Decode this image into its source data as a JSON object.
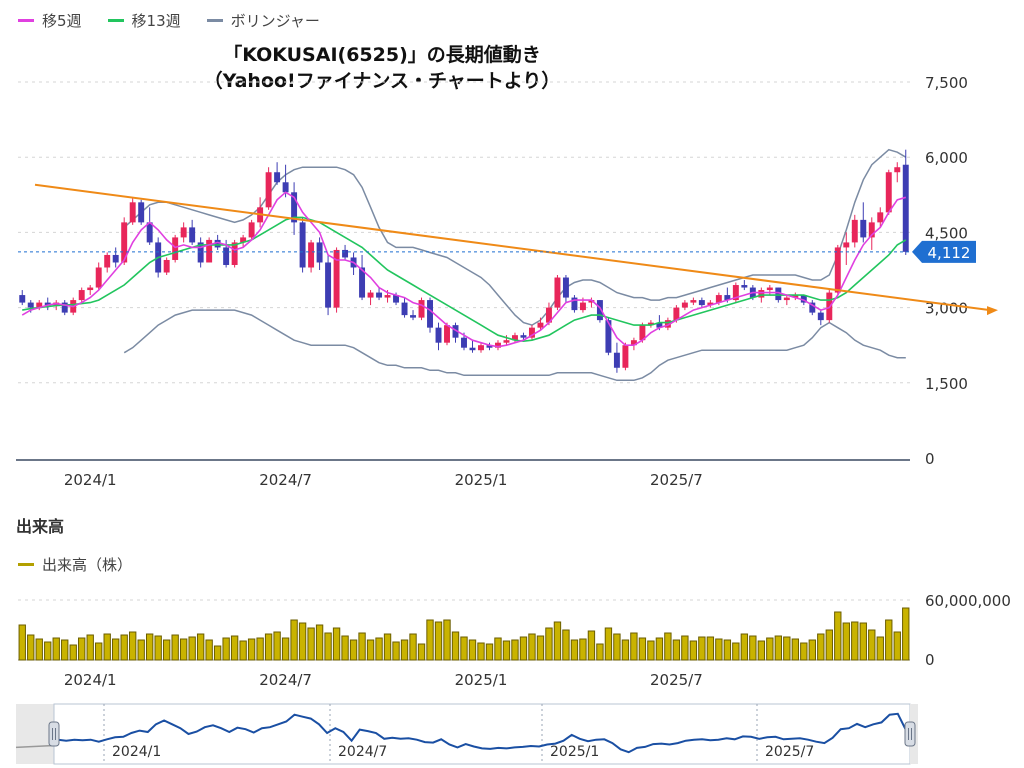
{
  "legend": [
    {
      "label": "移5週",
      "color": "#e040e0"
    },
    {
      "label": "移13週",
      "color": "#22c55e"
    },
    {
      "label": "ボリンジャー",
      "color": "#7b8ba3"
    }
  ],
  "title_line1": "「KOKUSAI(6525)」の長期値動き",
  "title_line2": "（Yahoo!ファイナンス・チャートより）",
  "chart_data": [
    {
      "type": "candlestick",
      "title": "「KOKUSAI(6525)」の長期値動き",
      "subtitle": "（Yahoo!ファイナンス・チャートより）",
      "y_ticks": [
        "7,500",
        "6,000",
        "4,500",
        "3,000",
        "1,500",
        "0"
      ],
      "y_tick_values": [
        7500,
        6000,
        4500,
        3000,
        1500,
        0
      ],
      "ylim": [
        0,
        7500
      ],
      "x_ticks": [
        "2024/1",
        "2024/7",
        "2025/1",
        "2025/7"
      ],
      "current_price": 4112,
      "current_price_label": "4,112",
      "series_names": [
        "移5週",
        "移13週",
        "ボリンジャー"
      ],
      "trendline": {
        "start_value": 5450,
        "end_value": 2950,
        "color": "#ef8a17"
      },
      "candles": [
        [
          3250,
          3350,
          3050,
          3100
        ],
        [
          3100,
          3150,
          2900,
          3000
        ],
        [
          3000,
          3150,
          2950,
          3100
        ],
        [
          3100,
          3200,
          2950,
          3050
        ],
        [
          3050,
          3150,
          2950,
          3100
        ],
        [
          3100,
          3150,
          2850,
          2900
        ],
        [
          2900,
          3200,
          2850,
          3150
        ],
        [
          3150,
          3400,
          3100,
          3350
        ],
        [
          3350,
          3450,
          3250,
          3400
        ],
        [
          3400,
          3900,
          3350,
          3800
        ],
        [
          3800,
          4100,
          3700,
          4050
        ],
        [
          4050,
          4200,
          3800,
          3900
        ],
        [
          3900,
          4800,
          3850,
          4700
        ],
        [
          4700,
          5200,
          4650,
          5100
        ],
        [
          5100,
          5150,
          4650,
          4700
        ],
        [
          4700,
          5000,
          4250,
          4300
        ],
        [
          4300,
          4400,
          3600,
          3700
        ],
        [
          3700,
          4000,
          3650,
          3950
        ],
        [
          3950,
          4450,
          3900,
          4400
        ],
        [
          4400,
          4700,
          4300,
          4600
        ],
        [
          4600,
          4750,
          4250,
          4300
        ],
        [
          4300,
          4400,
          3800,
          3900
        ],
        [
          3900,
          4400,
          3900,
          4350
        ],
        [
          4350,
          4450,
          4150,
          4200
        ],
        [
          4200,
          4350,
          3800,
          3850
        ],
        [
          3850,
          4350,
          3800,
          4300
        ],
        [
          4300,
          4450,
          4200,
          4400
        ],
        [
          4400,
          4750,
          4350,
          4700
        ],
        [
          4700,
          5200,
          4600,
          5000
        ],
        [
          5000,
          5800,
          4950,
          5700
        ],
        [
          5700,
          5900,
          5450,
          5500
        ],
        [
          5500,
          5850,
          5200,
          5300
        ],
        [
          5300,
          5500,
          4450,
          4700
        ],
        [
          4700,
          4800,
          3700,
          3800
        ],
        [
          3800,
          4350,
          3700,
          4300
        ],
        [
          4300,
          4400,
          3750,
          3900
        ],
        [
          3900,
          4050,
          2850,
          3000
        ],
        [
          3000,
          4200,
          2900,
          4150
        ],
        [
          4150,
          4250,
          3950,
          4000
        ],
        [
          4000,
          4100,
          3650,
          3800
        ],
        [
          3800,
          4050,
          3150,
          3200
        ],
        [
          3200,
          3350,
          3050,
          3300
        ],
        [
          3300,
          3400,
          3150,
          3200
        ],
        [
          3200,
          3350,
          3100,
          3250
        ],
        [
          3250,
          3300,
          3050,
          3100
        ],
        [
          3100,
          3200,
          2800,
          2850
        ],
        [
          2850,
          2950,
          2750,
          2800
        ],
        [
          2800,
          3200,
          2750,
          3150
        ],
        [
          3150,
          3200,
          2500,
          2600
        ],
        [
          2600,
          2700,
          2150,
          2300
        ],
        [
          2300,
          2700,
          2250,
          2650
        ],
        [
          2650,
          2700,
          2300,
          2400
        ],
        [
          2400,
          2500,
          2150,
          2200
        ],
        [
          2200,
          2350,
          2100,
          2150
        ],
        [
          2150,
          2300,
          2100,
          2250
        ],
        [
          2250,
          2300,
          2150,
          2200
        ],
        [
          2200,
          2350,
          2150,
          2300
        ],
        [
          2300,
          2450,
          2250,
          2350
        ],
        [
          2350,
          2500,
          2300,
          2450
        ],
        [
          2450,
          2500,
          2350,
          2400
        ],
        [
          2400,
          2650,
          2350,
          2600
        ],
        [
          2600,
          2800,
          2550,
          2700
        ],
        [
          2700,
          3100,
          2650,
          3000
        ],
        [
          3000,
          3650,
          2950,
          3600
        ],
        [
          3600,
          3650,
          3100,
          3200
        ],
        [
          3200,
          3250,
          2900,
          2950
        ],
        [
          2950,
          3200,
          2900,
          3100
        ],
        [
          3100,
          3200,
          3000,
          3150
        ],
        [
          3150,
          3150,
          2700,
          2750
        ],
        [
          2750,
          2800,
          2050,
          2100
        ],
        [
          2100,
          2300,
          1700,
          1800
        ],
        [
          1800,
          2300,
          1750,
          2250
        ],
        [
          2250,
          2400,
          2150,
          2350
        ],
        [
          2350,
          2700,
          2300,
          2650
        ],
        [
          2650,
          2750,
          2600,
          2700
        ],
        [
          2700,
          2850,
          2550,
          2600
        ],
        [
          2600,
          2800,
          2550,
          2750
        ],
        [
          2750,
          3050,
          2700,
          3000
        ],
        [
          3000,
          3150,
          2950,
          3100
        ],
        [
          3100,
          3200,
          3050,
          3150
        ],
        [
          3150,
          3200,
          3000,
          3050
        ],
        [
          3050,
          3150,
          3000,
          3100
        ],
        [
          3100,
          3300,
          3050,
          3250
        ],
        [
          3250,
          3400,
          3100,
          3150
        ],
        [
          3150,
          3500,
          3100,
          3450
        ],
        [
          3450,
          3550,
          3350,
          3400
        ],
        [
          3400,
          3450,
          3150,
          3200
        ],
        [
          3200,
          3400,
          3100,
          3350
        ],
        [
          3350,
          3450,
          3250,
          3400
        ],
        [
          3400,
          3400,
          3100,
          3150
        ],
        [
          3150,
          3250,
          3050,
          3200
        ],
        [
          3200,
          3300,
          3150,
          3250
        ],
        [
          3250,
          3250,
          3050,
          3100
        ],
        [
          3100,
          3150,
          2850,
          2900
        ],
        [
          2900,
          2950,
          2650,
          2750
        ],
        [
          2750,
          3350,
          2700,
          3300
        ],
        [
          3300,
          4250,
          3250,
          4200
        ],
        [
          4200,
          4500,
          3850,
          4300
        ],
        [
          4300,
          4850,
          4200,
          4750
        ],
        [
          4750,
          5100,
          4300,
          4400
        ],
        [
          4400,
          4800,
          4150,
          4700
        ],
        [
          4700,
          5000,
          4600,
          4900
        ],
        [
          4900,
          5750,
          4850,
          5700
        ],
        [
          5700,
          5900,
          5500,
          5800
        ],
        [
          5850,
          6150,
          4050,
          4112
        ]
      ],
      "ma5": [
        2850,
        2950,
        3000,
        3050,
        3080,
        3050,
        3020,
        3100,
        3200,
        3350,
        3550,
        3750,
        3950,
        4300,
        4550,
        4700,
        4550,
        4350,
        4200,
        4250,
        4200,
        4200,
        4250,
        4300,
        4250,
        4150,
        4200,
        4350,
        4550,
        4850,
        5150,
        5300,
        5200,
        4900,
        4700,
        4500,
        4050,
        3950,
        3950,
        3900,
        3750,
        3600,
        3400,
        3300,
        3250,
        3200,
        3100,
        3050,
        2950,
        2800,
        2650,
        2550,
        2450,
        2350,
        2300,
        2250,
        2220,
        2250,
        2300,
        2350,
        2450,
        2550,
        2700,
        2900,
        3100,
        3150,
        3150,
        3150,
        3000,
        2700,
        2400,
        2250,
        2250,
        2350,
        2500,
        2600,
        2650,
        2750,
        2850,
        2950,
        3000,
        3050,
        3100,
        3150,
        3200,
        3250,
        3300,
        3300,
        3300,
        3300,
        3250,
        3200,
        3150,
        3050,
        2950,
        3000,
        3250,
        3600,
        3950,
        4250,
        4450,
        4600,
        4900,
        5150,
        5200
      ],
      "ma13": [
        2950,
        2980,
        3000,
        3020,
        3040,
        3050,
        3060,
        3080,
        3100,
        3150,
        3250,
        3350,
        3450,
        3600,
        3750,
        3900,
        4000,
        4050,
        4100,
        4150,
        4200,
        4250,
        4250,
        4250,
        4250,
        4250,
        4300,
        4350,
        4450,
        4550,
        4650,
        4750,
        4800,
        4800,
        4750,
        4700,
        4600,
        4500,
        4400,
        4300,
        4200,
        4050,
        3900,
        3750,
        3650,
        3550,
        3450,
        3350,
        3250,
        3150,
        3050,
        2950,
        2850,
        2750,
        2650,
        2550,
        2450,
        2400,
        2350,
        2330,
        2350,
        2400,
        2450,
        2550,
        2650,
        2750,
        2800,
        2850,
        2850,
        2800,
        2750,
        2700,
        2650,
        2650,
        2650,
        2700,
        2700,
        2750,
        2800,
        2850,
        2900,
        2950,
        3000,
        3050,
        3100,
        3150,
        3200,
        3250,
        3250,
        3250,
        3250,
        3250,
        3250,
        3200,
        3150,
        3150,
        3200,
        3300,
        3450,
        3600,
        3750,
        3900,
        4050,
        4250,
        4350
      ],
      "bb_upper": [
        null,
        null,
        null,
        null,
        null,
        null,
        null,
        null,
        null,
        null,
        null,
        null,
        4600,
        4750,
        4900,
        5050,
        5100,
        5100,
        5050,
        5000,
        4950,
        4900,
        4850,
        4800,
        4750,
        4700,
        4750,
        4850,
        5000,
        5250,
        5500,
        5650,
        5750,
        5800,
        5800,
        5800,
        5800,
        5800,
        5750,
        5650,
        5400,
        5000,
        4600,
        4300,
        4200,
        4200,
        4200,
        4150,
        4100,
        4050,
        4000,
        3900,
        3800,
        3700,
        3600,
        3450,
        3250,
        3050,
        2850,
        2700,
        2650,
        2750,
        2950,
        3200,
        3400,
        3500,
        3550,
        3550,
        3500,
        3400,
        3300,
        3250,
        3200,
        3200,
        3150,
        3150,
        3200,
        3200,
        3250,
        3300,
        3350,
        3400,
        3450,
        3500,
        3550,
        3600,
        3650,
        3650,
        3650,
        3650,
        3650,
        3650,
        3600,
        3550,
        3550,
        3650,
        4050,
        4550,
        5100,
        5550,
        5850,
        6000,
        6150,
        6100,
        6000
      ],
      "bb_lower": [
        null,
        null,
        null,
        null,
        null,
        null,
        null,
        null,
        null,
        null,
        null,
        null,
        2100,
        2200,
        2350,
        2500,
        2650,
        2750,
        2850,
        2900,
        2950,
        2950,
        2950,
        2950,
        2950,
        2950,
        2900,
        2850,
        2750,
        2650,
        2550,
        2450,
        2350,
        2300,
        2250,
        2250,
        2250,
        2250,
        2250,
        2200,
        2100,
        2000,
        1900,
        1850,
        1850,
        1800,
        1800,
        1800,
        1750,
        1750,
        1700,
        1700,
        1650,
        1650,
        1650,
        1650,
        1650,
        1650,
        1650,
        1650,
        1650,
        1650,
        1650,
        1700,
        1700,
        1700,
        1700,
        1700,
        1650,
        1600,
        1550,
        1550,
        1550,
        1600,
        1700,
        1850,
        1950,
        2000,
        2050,
        2100,
        2150,
        2150,
        2150,
        2150,
        2150,
        2150,
        2150,
        2150,
        2150,
        2150,
        2150,
        2200,
        2250,
        2400,
        2600,
        2700,
        2600,
        2500,
        2350,
        2250,
        2200,
        2150,
        2050,
        2000,
        2000
      ]
    },
    {
      "type": "bar",
      "title": "出来高",
      "legend": "出来高（株）",
      "y_ticks": [
        "60,000,000",
        "0"
      ],
      "ylim": [
        0,
        60000000
      ],
      "x_ticks": [
        "2024/1",
        "2024/7",
        "2025/1",
        "2025/7"
      ],
      "values": [
        35000000,
        25000000,
        21000000,
        18000000,
        22000000,
        20000000,
        15000000,
        22000000,
        25000000,
        17000000,
        26000000,
        21000000,
        25000000,
        28000000,
        20000000,
        26000000,
        24000000,
        20000000,
        25000000,
        21000000,
        23000000,
        26000000,
        20000000,
        14000000,
        22000000,
        24000000,
        19000000,
        21000000,
        22000000,
        26000000,
        28000000,
        22000000,
        40000000,
        37000000,
        32000000,
        35000000,
        27000000,
        32000000,
        24000000,
        20000000,
        27000000,
        20000000,
        22000000,
        26000000,
        18000000,
        20000000,
        26000000,
        16000000,
        40000000,
        38000000,
        40000000,
        28000000,
        23000000,
        20000000,
        17000000,
        16000000,
        22000000,
        19000000,
        20000000,
        23000000,
        26000000,
        24000000,
        32000000,
        38000000,
        30000000,
        20000000,
        21000000,
        29000000,
        16000000,
        32000000,
        26000000,
        20000000,
        27000000,
        22000000,
        19000000,
        22000000,
        27000000,
        20000000,
        24000000,
        19000000,
        23000000,
        23000000,
        21000000,
        20000000,
        17000000,
        26000000,
        24000000,
        19000000,
        22000000,
        24000000,
        23000000,
        21000000,
        17000000,
        20000000,
        26000000,
        30000000,
        48000000,
        37000000,
        38000000,
        37000000,
        30000000,
        23000000,
        40000000,
        28000000,
        52000000
      ]
    }
  ],
  "navigator": {
    "x_ticks": [
      "2024/1",
      "2024/7",
      "2025/1",
      "2025/7"
    ]
  }
}
